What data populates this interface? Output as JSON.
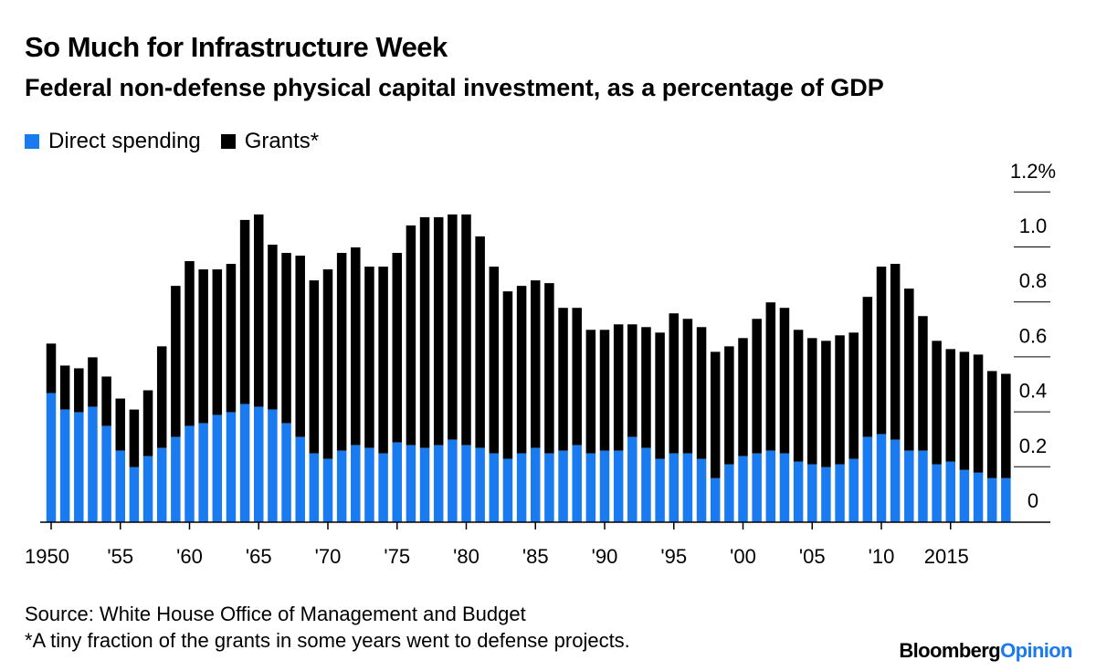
{
  "header": {
    "title": "So Much for Infrastructure Week",
    "subtitle": "Federal non-defense physical capital investment, as a percentage of GDP"
  },
  "colors": {
    "direct": "#1a7bf0",
    "grants": "#000000",
    "grid": "#000000",
    "brand_accent": "#1a7bf0"
  },
  "footer": {
    "source": "Source: White House Office of Management and Budget",
    "note": "*A tiny fraction of the grants in some years went to defense projects."
  },
  "brand": {
    "part1": "Bloomberg",
    "part2": "Opinion"
  },
  "chart_data": {
    "type": "bar",
    "stacked": true,
    "years": [
      1950,
      1951,
      1952,
      1953,
      1954,
      1955,
      1956,
      1957,
      1958,
      1959,
      1960,
      1961,
      1962,
      1963,
      1964,
      1965,
      1966,
      1967,
      1968,
      1969,
      1970,
      1971,
      1972,
      1973,
      1974,
      1975,
      1976,
      1977,
      1978,
      1979,
      1980,
      1981,
      1982,
      1983,
      1984,
      1985,
      1986,
      1987,
      1988,
      1989,
      1990,
      1991,
      1992,
      1993,
      1994,
      1995,
      1996,
      1997,
      1998,
      1999,
      2000,
      2001,
      2002,
      2003,
      2004,
      2005,
      2006,
      2007,
      2008,
      2009,
      2010,
      2011,
      2012,
      2013,
      2014,
      2015,
      2016,
      2017,
      2018,
      2019
    ],
    "x_tick_labels": [
      {
        "year": 1950,
        "label": "1950"
      },
      {
        "year": 1955,
        "label": "'55"
      },
      {
        "year": 1960,
        "label": "'60"
      },
      {
        "year": 1965,
        "label": "'65"
      },
      {
        "year": 1970,
        "label": "'70"
      },
      {
        "year": 1975,
        "label": "'75"
      },
      {
        "year": 1980,
        "label": "'80"
      },
      {
        "year": 1985,
        "label": "'85"
      },
      {
        "year": 1990,
        "label": "'90"
      },
      {
        "year": 1995,
        "label": "'95"
      },
      {
        "year": 2000,
        "label": "'00"
      },
      {
        "year": 2005,
        "label": "'05"
      },
      {
        "year": 2010,
        "label": "'10"
      },
      {
        "year": 2015,
        "label": "2015"
      }
    ],
    "y_ticks": [
      {
        "value": 0,
        "label": "0"
      },
      {
        "value": 0.2,
        "label": "0.2"
      },
      {
        "value": 0.4,
        "label": "0.4"
      },
      {
        "value": 0.6,
        "label": "0.6"
      },
      {
        "value": 0.8,
        "label": "0.8"
      },
      {
        "value": 1.0,
        "label": "1.0"
      },
      {
        "value": 1.2,
        "label": "1.2%"
      }
    ],
    "ylim": [
      0,
      1.2
    ],
    "grid": true,
    "legend_position": "top-left",
    "series": [
      {
        "name": "Direct spending",
        "values": [
          0.47,
          0.41,
          0.4,
          0.42,
          0.35,
          0.26,
          0.2,
          0.24,
          0.27,
          0.31,
          0.35,
          0.36,
          0.39,
          0.4,
          0.43,
          0.42,
          0.41,
          0.36,
          0.31,
          0.25,
          0.23,
          0.26,
          0.28,
          0.27,
          0.25,
          0.29,
          0.28,
          0.27,
          0.28,
          0.3,
          0.28,
          0.27,
          0.25,
          0.23,
          0.25,
          0.27,
          0.25,
          0.26,
          0.28,
          0.25,
          0.26,
          0.26,
          0.31,
          0.27,
          0.23,
          0.25,
          0.25,
          0.23,
          0.16,
          0.21,
          0.24,
          0.25,
          0.26,
          0.25,
          0.22,
          0.21,
          0.2,
          0.21,
          0.23,
          0.31,
          0.32,
          0.3,
          0.26,
          0.26,
          0.21,
          0.22,
          0.19,
          0.18,
          0.16,
          0.16
        ]
      },
      {
        "name": "Grants*",
        "values": [
          0.18,
          0.16,
          0.16,
          0.18,
          0.18,
          0.19,
          0.21,
          0.24,
          0.37,
          0.55,
          0.6,
          0.56,
          0.53,
          0.54,
          0.67,
          0.7,
          0.6,
          0.62,
          0.66,
          0.63,
          0.69,
          0.72,
          0.72,
          0.66,
          0.68,
          0.69,
          0.8,
          0.84,
          0.83,
          0.82,
          0.84,
          0.77,
          0.68,
          0.61,
          0.61,
          0.61,
          0.62,
          0.52,
          0.5,
          0.45,
          0.44,
          0.46,
          0.41,
          0.44,
          0.46,
          0.51,
          0.49,
          0.48,
          0.46,
          0.43,
          0.43,
          0.49,
          0.54,
          0.53,
          0.48,
          0.46,
          0.46,
          0.47,
          0.46,
          0.51,
          0.61,
          0.64,
          0.59,
          0.49,
          0.45,
          0.41,
          0.43,
          0.43,
          0.39,
          0.38
        ]
      }
    ]
  }
}
